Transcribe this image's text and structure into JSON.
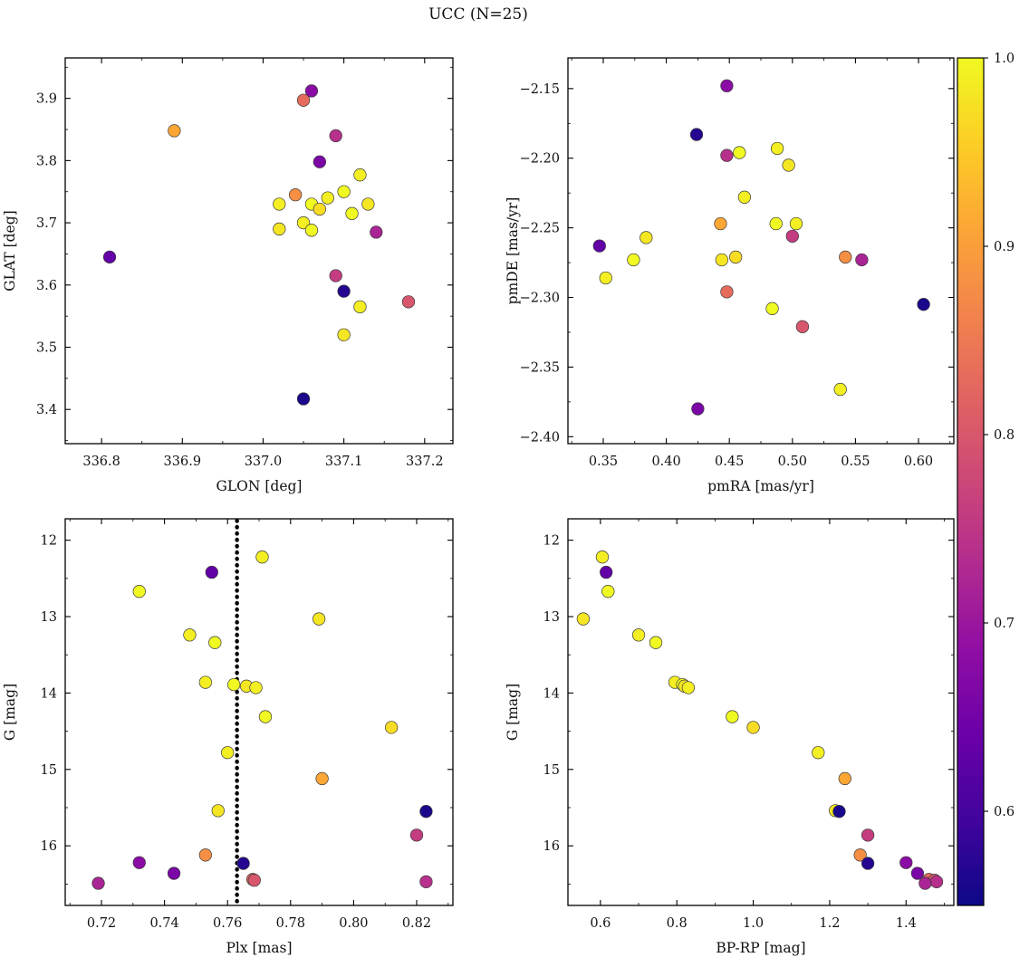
{
  "title": "UCC (N=25)",
  "chart_data": {
    "type": "scatter",
    "title": "UCC (N=25)",
    "n_members": 25,
    "color_variable": {
      "cmap": "plasma",
      "vmin": 0.55,
      "vmax": 1.0,
      "colorbar_ticks": [
        1.0,
        0.9,
        0.8,
        0.7,
        0.6
      ],
      "colorbar_tick_decimals": 1
    },
    "plasma_stops": [
      "#0d0887",
      "#41049d",
      "#6a00a8",
      "#8f0da4",
      "#b12a90",
      "#cc4778",
      "#e16462",
      "#f2844b",
      "#fca636",
      "#fcce25",
      "#f0f921"
    ],
    "panels": [
      {
        "key": "glon-glat",
        "xlabel": "GLON [deg]",
        "ylabel": "GLAT [deg]",
        "xfield": "glon",
        "yfield": "glat",
        "xlim": [
          336.755,
          337.235
        ],
        "ylim": [
          3.345,
          3.965
        ],
        "invert_y": false,
        "xticks": [
          336.8,
          336.9,
          337.0,
          337.1,
          337.2
        ],
        "yticks": [
          3.4,
          3.5,
          3.6,
          3.7,
          3.8,
          3.9
        ],
        "xdec": 1,
        "ydec": 1
      },
      {
        "key": "pmra-pmde",
        "xlabel": "pmRA [mas/yr]",
        "ylabel": "pmDE [mas/yr]",
        "xfield": "pmra",
        "yfield": "pmde",
        "xlim": [
          0.322,
          0.628
        ],
        "ylim": [
          -2.405,
          -2.128
        ],
        "invert_y": false,
        "xticks": [
          0.35,
          0.4,
          0.45,
          0.5,
          0.55,
          0.6
        ],
        "yticks": [
          -2.4,
          -2.35,
          -2.3,
          -2.25,
          -2.2,
          -2.15
        ],
        "xdec": 2,
        "ydec": 2
      },
      {
        "key": "plx-g",
        "xlabel": "Plx [mas]",
        "ylabel": "G [mag]",
        "xfield": "plx",
        "yfield": "g",
        "xlim": [
          0.7085,
          0.8315
        ],
        "ylim": [
          11.72,
          16.78
        ],
        "invert_y": true,
        "xticks": [
          0.72,
          0.74,
          0.76,
          0.78,
          0.8,
          0.82
        ],
        "yticks": [
          12,
          13,
          14,
          15,
          16
        ],
        "xdec": 2,
        "ydec": 0,
        "vline": 0.763
      },
      {
        "key": "bprp-g",
        "xlabel": "BP-RP [mag]",
        "ylabel": "G [mag]",
        "xfield": "bprp",
        "yfield": "g",
        "xlim": [
          0.515,
          1.525
        ],
        "ylim": [
          11.72,
          16.78
        ],
        "invert_y": true,
        "xticks": [
          0.6,
          0.8,
          1.0,
          1.2,
          1.4
        ],
        "yticks": [
          12,
          13,
          14,
          15,
          16
        ],
        "xdec": 1,
        "ydec": 0
      }
    ],
    "stars": [
      {
        "glon": 337.02,
        "glat": 3.73,
        "pmra": 0.488,
        "pmde": -2.193,
        "plx": 0.771,
        "g": 12.22,
        "bprp": 0.605,
        "p": 0.99
      },
      {
        "glon": 337.06,
        "glat": 3.73,
        "pmra": 0.458,
        "pmde": -2.196,
        "plx": 0.732,
        "g": 12.67,
        "bprp": 0.62,
        "p": 1.0
      },
      {
        "glon": 337.13,
        "glat": 3.73,
        "pmra": 0.497,
        "pmde": -2.205,
        "plx": 0.789,
        "g": 13.03,
        "bprp": 0.555,
        "p": 0.98
      },
      {
        "glon": 337.08,
        "glat": 3.74,
        "pmra": 0.462,
        "pmde": -2.228,
        "plx": 0.748,
        "g": 13.24,
        "bprp": 0.7,
        "p": 0.99
      },
      {
        "glon": 337.1,
        "glat": 3.75,
        "pmra": 0.487,
        "pmde": -2.247,
        "plx": 0.756,
        "g": 13.34,
        "bprp": 0.745,
        "p": 1.0
      },
      {
        "glon": 337.12,
        "glat": 3.777,
        "pmra": 0.503,
        "pmde": -2.247,
        "plx": 0.753,
        "g": 13.86,
        "bprp": 0.795,
        "p": 0.99
      },
      {
        "glon": 337.11,
        "glat": 3.715,
        "pmra": 0.374,
        "pmde": -2.273,
        "plx": 0.762,
        "g": 13.89,
        "bprp": 0.815,
        "p": 1.0
      },
      {
        "glon": 337.02,
        "glat": 3.69,
        "pmra": 0.444,
        "pmde": -2.273,
        "plx": 0.766,
        "g": 13.91,
        "bprp": 0.82,
        "p": 0.98
      },
      {
        "glon": 337.05,
        "glat": 3.7,
        "pmra": 0.352,
        "pmde": -2.286,
        "plx": 0.769,
        "g": 13.93,
        "bprp": 0.83,
        "p": 0.99
      },
      {
        "glon": 337.06,
        "glat": 3.688,
        "pmra": 0.484,
        "pmde": -2.308,
        "plx": 0.772,
        "g": 14.31,
        "bprp": 0.945,
        "p": 1.0
      },
      {
        "glon": 337.07,
        "glat": 3.722,
        "pmra": 0.455,
        "pmde": -2.271,
        "plx": 0.812,
        "g": 14.45,
        "bprp": 1.0,
        "p": 0.97
      },
      {
        "glon": 337.12,
        "glat": 3.565,
        "pmra": 0.538,
        "pmde": -2.366,
        "plx": 0.76,
        "g": 14.78,
        "bprp": 1.17,
        "p": 0.99
      },
      {
        "glon": 337.1,
        "glat": 3.52,
        "pmra": 0.384,
        "pmde": -2.257,
        "plx": 0.757,
        "g": 15.54,
        "bprp": 1.215,
        "p": 0.98
      },
      {
        "glon": 336.89,
        "glat": 3.848,
        "pmra": 0.443,
        "pmde": -2.247,
        "plx": 0.79,
        "g": 15.12,
        "bprp": 1.24,
        "p": 0.91
      },
      {
        "glon": 337.04,
        "glat": 3.745,
        "pmra": 0.542,
        "pmde": -2.271,
        "plx": 0.753,
        "g": 16.12,
        "bprp": 1.28,
        "p": 0.88
      },
      {
        "glon": 337.05,
        "glat": 3.897,
        "pmra": 0.448,
        "pmde": -2.296,
        "plx": 0.768,
        "g": 16.44,
        "bprp": 1.46,
        "p": 0.83
      },
      {
        "glon": 337.18,
        "glat": 3.573,
        "pmra": 0.508,
        "pmde": -2.321,
        "plx": 0.7685,
        "g": 16.45,
        "bprp": 1.475,
        "p": 0.8
      },
      {
        "glon": 337.09,
        "glat": 3.615,
        "pmra": 0.5,
        "pmde": -2.256,
        "plx": 0.82,
        "g": 15.86,
        "bprp": 1.3,
        "p": 0.76
      },
      {
        "glon": 337.09,
        "glat": 3.84,
        "pmra": 0.448,
        "pmde": -2.198,
        "plx": 0.823,
        "g": 16.47,
        "bprp": 1.48,
        "p": 0.74
      },
      {
        "glon": 337.14,
        "glat": 3.685,
        "pmra": 0.555,
        "pmde": -2.273,
        "plx": 0.719,
        "g": 16.49,
        "bprp": 1.45,
        "p": 0.72
      },
      {
        "glon": 337.06,
        "glat": 3.912,
        "pmra": 0.448,
        "pmde": -2.148,
        "plx": 0.732,
        "g": 16.22,
        "bprp": 1.4,
        "p": 0.68
      },
      {
        "glon": 337.07,
        "glat": 3.798,
        "pmra": 0.425,
        "pmde": -2.38,
        "plx": 0.743,
        "g": 16.36,
        "bprp": 1.43,
        "p": 0.66
      },
      {
        "glon": 336.81,
        "glat": 3.645,
        "pmra": 0.347,
        "pmde": -2.263,
        "plx": 0.755,
        "g": 12.42,
        "bprp": 0.615,
        "p": 0.63
      },
      {
        "glon": 337.1,
        "glat": 3.59,
        "pmra": 0.424,
        "pmde": -2.183,
        "plx": 0.765,
        "g": 16.23,
        "bprp": 1.3,
        "p": 0.57
      },
      {
        "glon": 337.05,
        "glat": 3.417,
        "pmra": 0.604,
        "pmde": -2.305,
        "plx": 0.823,
        "g": 15.55,
        "bprp": 1.225,
        "p": 0.56
      }
    ]
  }
}
